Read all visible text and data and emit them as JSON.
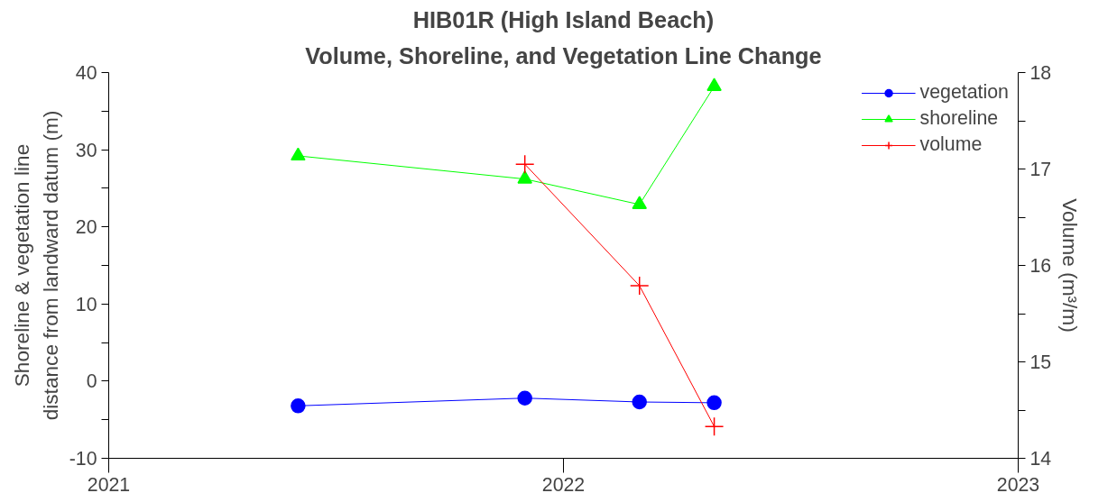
{
  "chart_data": {
    "type": "line",
    "title": "HIB01R (High Island Beach)",
    "subtitle": "Volume, Shoreline, and Vegetation Line Change",
    "ylabel": "Shoreline & vegetation line\ndistance from landward datum (m)",
    "y2label": "Volume (m³/m)",
    "x": [
      "2021-06-02",
      "2021-12-01",
      "2022-03-03",
      "2022-05-02"
    ],
    "series": [
      {
        "name": "vegetation",
        "color": "#0000ff",
        "marker": "circle",
        "values": [
          -3.2,
          -2.2,
          -2.7,
          -2.8
        ]
      },
      {
        "name": "shoreline",
        "color": "#00ff00",
        "marker": "triangle",
        "values": [
          29.2,
          26.2,
          22.9,
          38.2
        ]
      },
      {
        "name": "volume",
        "color": "#ff0000",
        "marker": "cross",
        "axis": "y2",
        "x": [
          "2021-12-01",
          "2022-03-03",
          "2022-05-02"
        ],
        "values": [
          17.05,
          15.79,
          14.33
        ]
      }
    ],
    "xlim": [
      "2021-01-01",
      "2023-01-01"
    ],
    "xticks": [
      {
        "value": "2021-01-01",
        "label": "2021"
      },
      {
        "value": "2022-01-01",
        "label": "2022"
      },
      {
        "value": "2023-01-01",
        "label": "2023"
      }
    ],
    "ylim": [
      -10,
      40
    ],
    "yticks": [
      -10,
      {
        "value": -5,
        "label": null
      },
      0,
      {
        "value": 5,
        "label": null
      },
      10,
      {
        "value": 15,
        "label": null
      },
      20,
      {
        "value": 25,
        "label": null
      },
      30,
      {
        "value": 35,
        "label": null
      },
      40
    ],
    "y2lim": [
      14,
      18
    ],
    "y2ticks": [
      14,
      {
        "value": 14.5,
        "label": null
      },
      15,
      {
        "value": 15.5,
        "label": null
      },
      16,
      {
        "value": 16.5,
        "label": null
      },
      17,
      {
        "value": 17.5,
        "label": null
      },
      18
    ],
    "grid": false,
    "legend": "top right"
  }
}
